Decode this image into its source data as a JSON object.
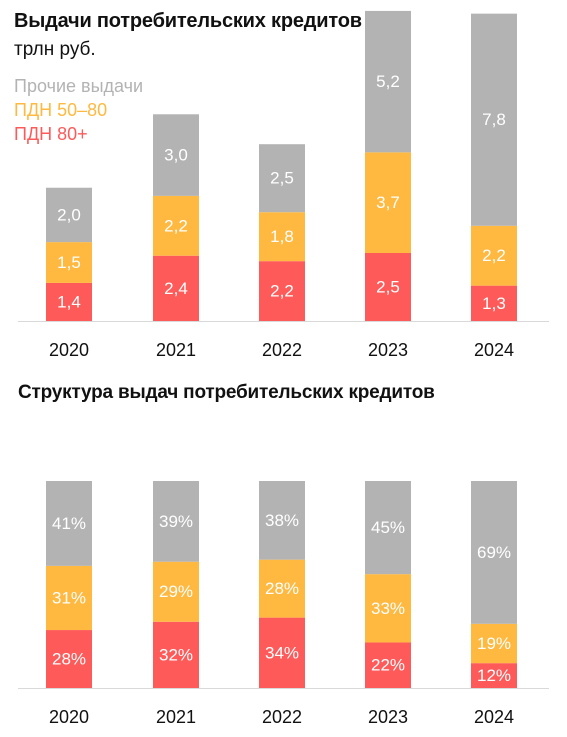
{
  "colors": {
    "other": "#b3b3b3",
    "pdn_50_80": "#ffb940",
    "pdn_80": "#ff5a5a",
    "baseline": "#d9d9d9"
  },
  "top_title": "Выдачи потребительских кредитов",
  "top_subtitle": "трлн руб.",
  "legend": {
    "other": "Прочие выдачи",
    "pdn_50_80": "ПДН 50–80",
    "pdn_80": "ПДН 80+"
  },
  "bottom_title": "Структура выдач потребительских кредитов",
  "chart_data": [
    {
      "type": "bar",
      "stacked": true,
      "title": "Выдачи потребительских кредитов",
      "subtitle": "трлн руб.",
      "categories": [
        "2020",
        "2021",
        "2022",
        "2023",
        "2024"
      ],
      "series": [
        {
          "name": "ПДН 80+",
          "key": "pdn_80",
          "values": [
            1.4,
            2.4,
            2.2,
            2.5,
            1.3
          ],
          "labels": [
            "1,4",
            "2,4",
            "2,2",
            "2,5",
            "1,3"
          ]
        },
        {
          "name": "ПДН 50–80",
          "key": "pdn_50_80",
          "values": [
            1.5,
            2.2,
            1.8,
            3.7,
            2.2
          ],
          "labels": [
            "1,5",
            "2,2",
            "1,8",
            "3,7",
            "2,2"
          ]
        },
        {
          "name": "Прочие выдачи",
          "key": "other",
          "values": [
            2.0,
            3.0,
            2.5,
            5.2,
            7.8
          ],
          "labels": [
            "2,0",
            "3,0",
            "2,5",
            "5,2",
            "7,8"
          ]
        }
      ],
      "legend_position": "top-left",
      "grid": false
    },
    {
      "type": "bar",
      "stacked": true,
      "percent": true,
      "title": "Структура выдач потребительских кредитов",
      "categories": [
        "2020",
        "2021",
        "2022",
        "2023",
        "2024"
      ],
      "series": [
        {
          "name": "ПДН 80+",
          "key": "pdn_80",
          "values": [
            28,
            32,
            34,
            22,
            12
          ],
          "labels": [
            "28%",
            "32%",
            "34%",
            "22%",
            "12%"
          ]
        },
        {
          "name": "ПДН 50–80",
          "key": "pdn_50_80",
          "values": [
            31,
            29,
            28,
            33,
            19
          ],
          "labels": [
            "31%",
            "29%",
            "28%",
            "33%",
            "19%"
          ]
        },
        {
          "name": "Прочие выдачи",
          "key": "other",
          "values": [
            41,
            39,
            38,
            45,
            69
          ],
          "labels": [
            "41%",
            "39%",
            "38%",
            "45%",
            "69%"
          ]
        }
      ],
      "ylim": [
        0,
        100
      ],
      "grid": false
    }
  ]
}
